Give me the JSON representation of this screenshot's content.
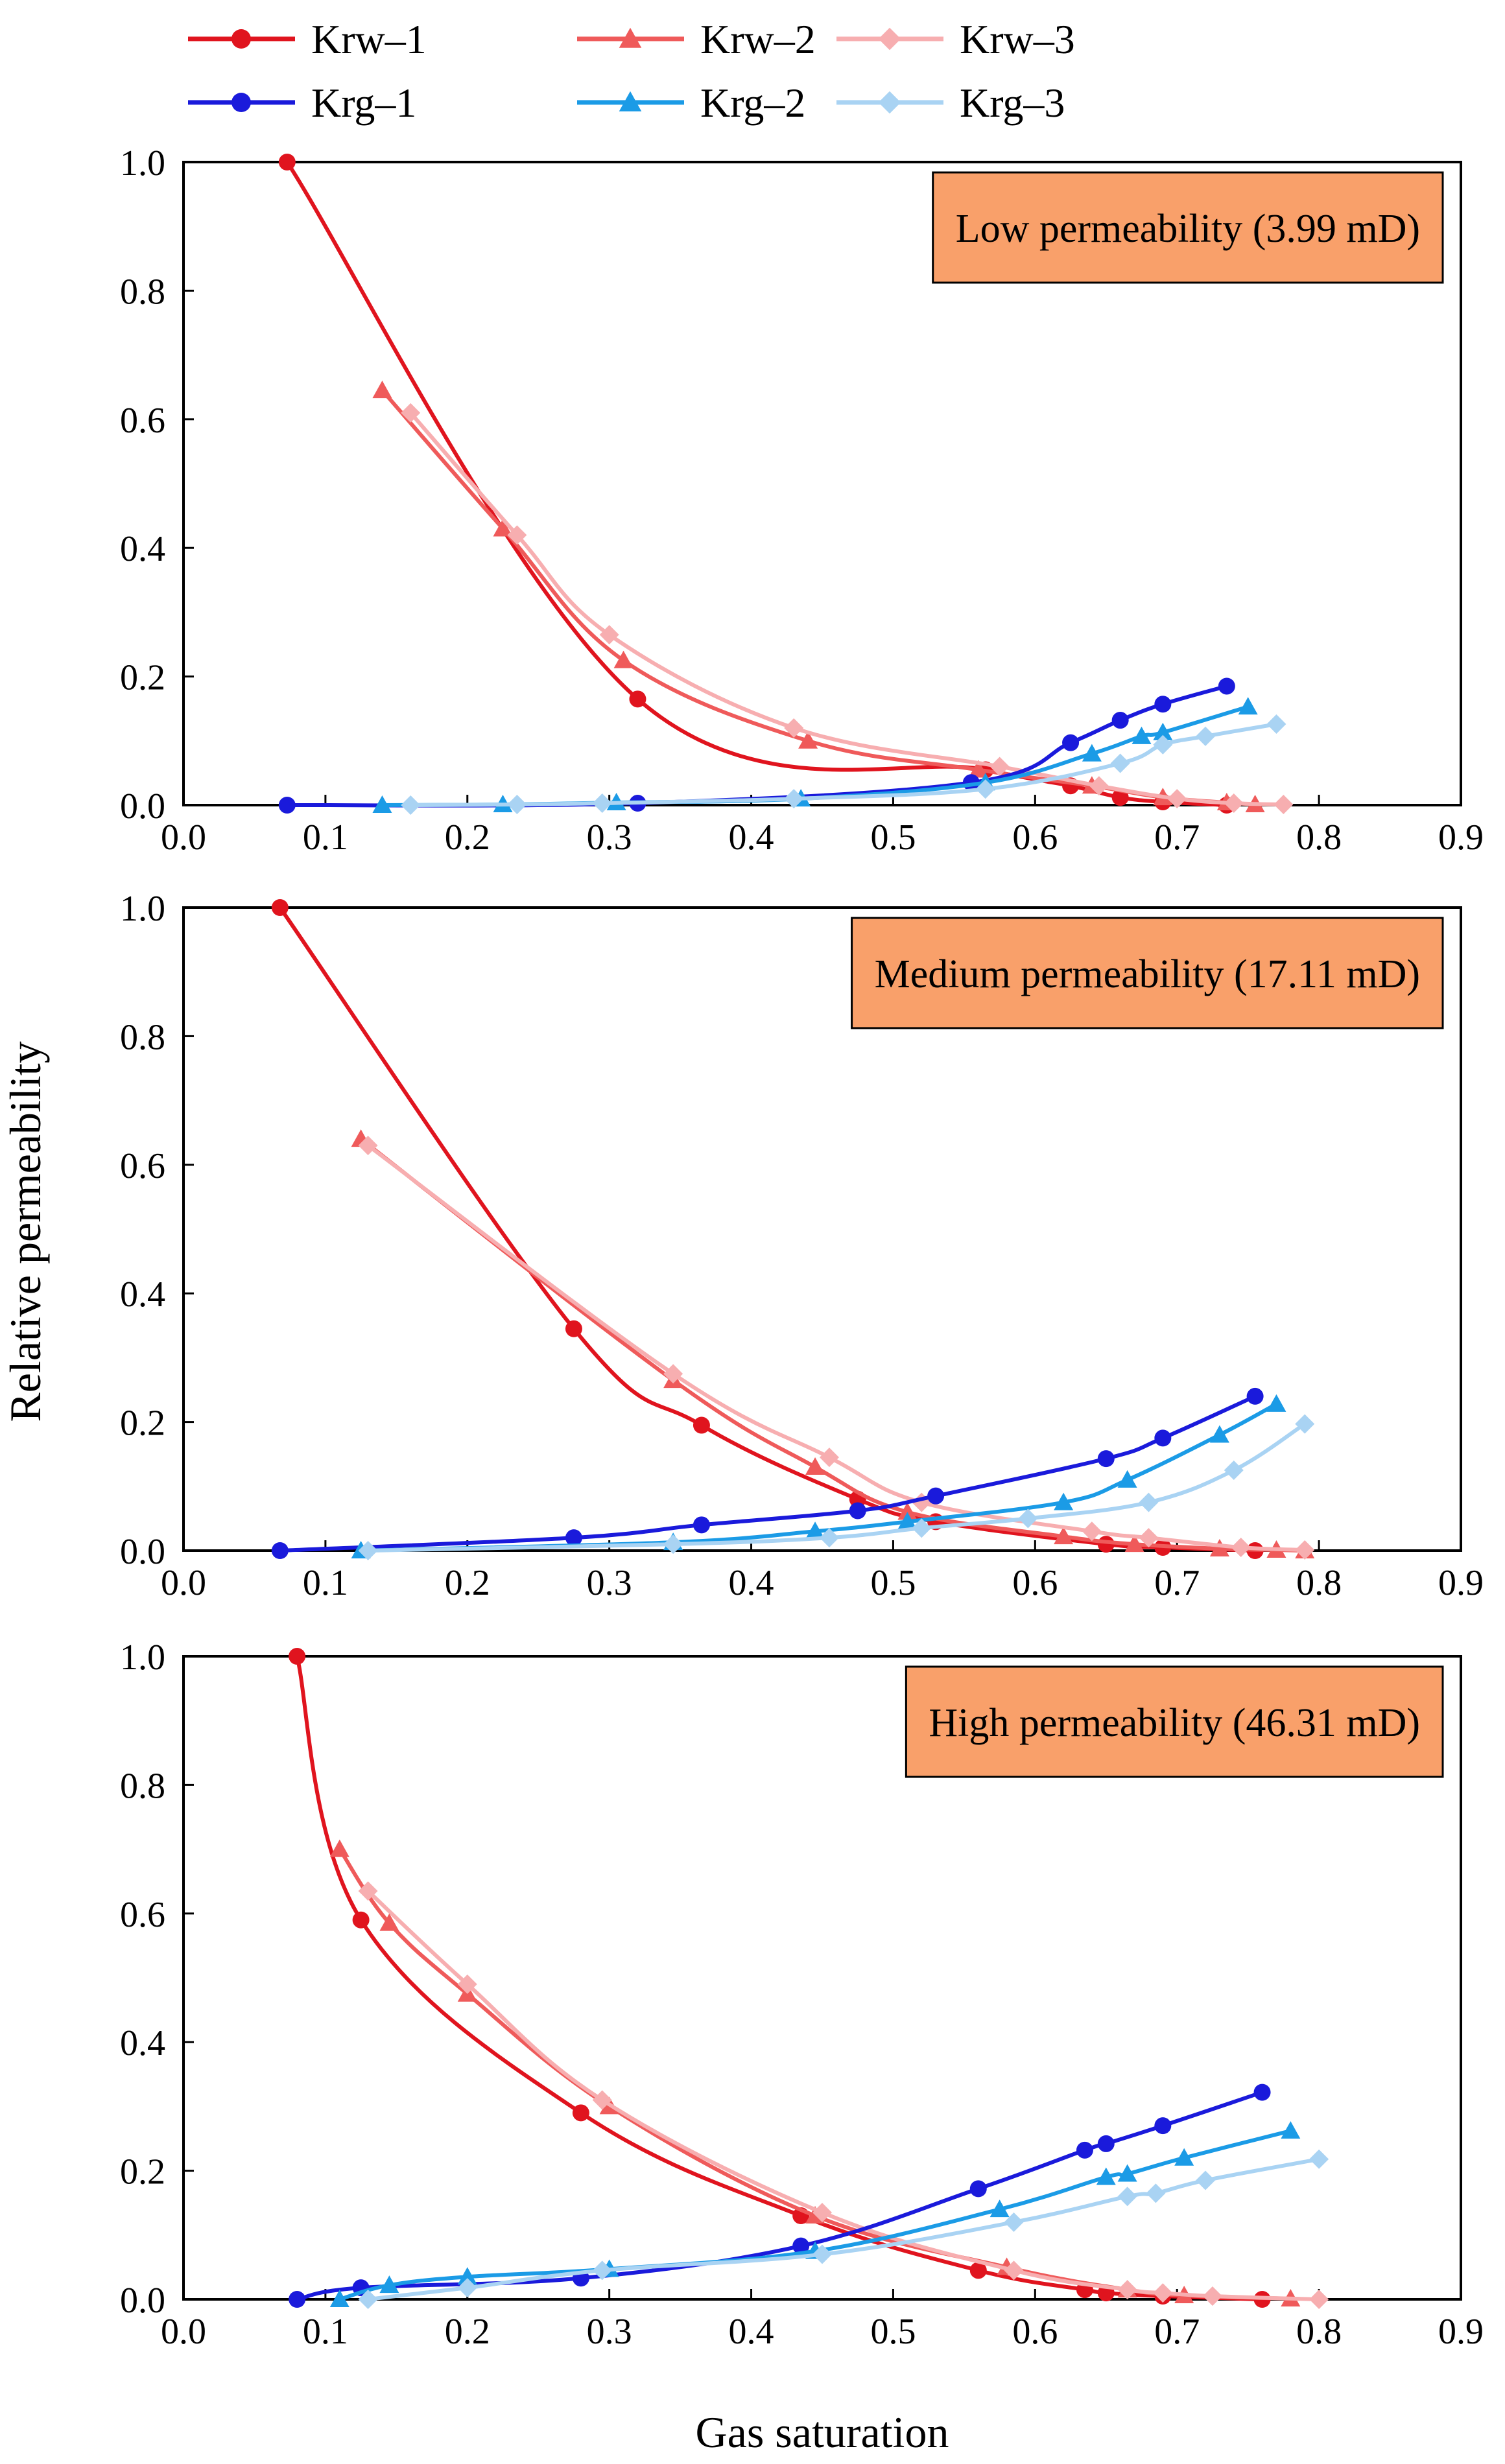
{
  "figure": {
    "ylabel": "Relative permeability",
    "xlabel": "Gas saturation"
  },
  "colors": {
    "Krw-1": "#e0141e",
    "Krw-2": "#ef5a5a",
    "Krw-3": "#f7aeb0",
    "Krg-1": "#1a1adb",
    "Krg-2": "#1b9be6",
    "Krg-3": "#a9d3f3",
    "badge_fill": "#f9a06a",
    "axis": "#000000"
  },
  "legend": [
    {
      "key": "Krw-1",
      "label": "Krw–1",
      "marker": "circle"
    },
    {
      "key": "Krw-2",
      "label": "Krw–2",
      "marker": "triangle"
    },
    {
      "key": "Krw-3",
      "label": "Krw–3",
      "marker": "diamond"
    },
    {
      "key": "Krg-1",
      "label": "Krg–1",
      "marker": "circle"
    },
    {
      "key": "Krg-2",
      "label": "Krg–2",
      "marker": "triangle"
    },
    {
      "key": "Krg-3",
      "label": "Krg–3",
      "marker": "diamond"
    }
  ],
  "chart_data": [
    {
      "type": "line",
      "title": "Low permeability (3.99 mD)",
      "xlabel": "",
      "ylabel": "",
      "xlim": [
        0.0,
        0.9
      ],
      "ylim": [
        0.0,
        1.0
      ],
      "x_ticks": [
        "0.0",
        "0.1",
        "0.2",
        "0.3",
        "0.4",
        "0.5",
        "0.6",
        "0.7",
        "0.8",
        "0.9"
      ],
      "y_ticks": [
        "0.0",
        "0.2",
        "0.4",
        "0.6",
        "0.8",
        "1.0"
      ],
      "series": [
        {
          "name": "Krw-1",
          "x": [
            0.073,
            0.32,
            0.565,
            0.625,
            0.66,
            0.69,
            0.735
          ],
          "y": [
            1.0,
            0.165,
            0.055,
            0.03,
            0.012,
            0.005,
            0.0
          ]
        },
        {
          "name": "Krw-2",
          "x": [
            0.14,
            0.225,
            0.31,
            0.44,
            0.56,
            0.64,
            0.69,
            0.735,
            0.755
          ],
          "y": [
            0.645,
            0.43,
            0.225,
            0.1,
            0.055,
            0.03,
            0.012,
            0.004,
            0.001
          ]
        },
        {
          "name": "Krw-3",
          "x": [
            0.16,
            0.235,
            0.3,
            0.43,
            0.575,
            0.645,
            0.7,
            0.74,
            0.775
          ],
          "y": [
            0.61,
            0.42,
            0.265,
            0.12,
            0.06,
            0.03,
            0.01,
            0.003,
            0.001
          ]
        },
        {
          "name": "Krg-1",
          "x": [
            0.073,
            0.32,
            0.555,
            0.625,
            0.66,
            0.69,
            0.735
          ],
          "y": [
            0.0,
            0.003,
            0.035,
            0.097,
            0.132,
            0.157,
            0.185
          ]
        },
        {
          "name": "Krg-2",
          "x": [
            0.14,
            0.225,
            0.305,
            0.435,
            0.565,
            0.64,
            0.675,
            0.69,
            0.75
          ],
          "y": [
            0.0,
            0.001,
            0.004,
            0.01,
            0.035,
            0.08,
            0.107,
            0.113,
            0.153
          ]
        },
        {
          "name": "Krg-3",
          "x": [
            0.16,
            0.235,
            0.295,
            0.43,
            0.565,
            0.66,
            0.69,
            0.72,
            0.77
          ],
          "y": [
            0.0,
            0.001,
            0.003,
            0.01,
            0.025,
            0.065,
            0.094,
            0.107,
            0.126
          ]
        }
      ]
    },
    {
      "type": "line",
      "title": "Medium permeability (17.11 mD)",
      "xlabel": "",
      "ylabel": "",
      "xlim": [
        0.0,
        0.9
      ],
      "ylim": [
        0.0,
        1.0
      ],
      "x_ticks": [
        "0.0",
        "0.1",
        "0.2",
        "0.3",
        "0.4",
        "0.5",
        "0.6",
        "0.7",
        "0.8",
        "0.9"
      ],
      "y_ticks": [
        "0.0",
        "0.2",
        "0.4",
        "0.6",
        "0.8",
        "1.0"
      ],
      "series": [
        {
          "name": "Krw-1",
          "x": [
            0.068,
            0.275,
            0.365,
            0.475,
            0.53,
            0.65,
            0.69,
            0.755
          ],
          "y": [
            1.0,
            0.345,
            0.195,
            0.08,
            0.045,
            0.01,
            0.005,
            0.0
          ]
        },
        {
          "name": "Krw-2",
          "x": [
            0.125,
            0.345,
            0.445,
            0.51,
            0.62,
            0.67,
            0.73,
            0.77,
            0.79
          ],
          "y": [
            0.64,
            0.265,
            0.13,
            0.06,
            0.022,
            0.01,
            0.003,
            0.001,
            0.0
          ]
        },
        {
          "name": "Krw-3",
          "x": [
            0.13,
            0.345,
            0.455,
            0.52,
            0.64,
            0.68,
            0.745,
            0.79
          ],
          "y": [
            0.63,
            0.275,
            0.145,
            0.075,
            0.03,
            0.02,
            0.005,
            0.001
          ]
        },
        {
          "name": "Krg-1",
          "x": [
            0.068,
            0.275,
            0.365,
            0.475,
            0.53,
            0.65,
            0.69,
            0.755
          ],
          "y": [
            0.0,
            0.02,
            0.04,
            0.062,
            0.085,
            0.143,
            0.175,
            0.24
          ]
        },
        {
          "name": "Krg-2",
          "x": [
            0.125,
            0.345,
            0.445,
            0.51,
            0.62,
            0.665,
            0.73,
            0.77
          ],
          "y": [
            0.0,
            0.013,
            0.03,
            0.045,
            0.075,
            0.11,
            0.18,
            0.228
          ]
        },
        {
          "name": "Krg-3",
          "x": [
            0.13,
            0.345,
            0.455,
            0.52,
            0.595,
            0.68,
            0.74,
            0.79
          ],
          "y": [
            0.0,
            0.01,
            0.02,
            0.035,
            0.05,
            0.075,
            0.125,
            0.197
          ]
        }
      ]
    },
    {
      "type": "line",
      "title": "High permeability (46.31 mD)",
      "xlabel": "Gas saturation",
      "ylabel": "",
      "xlim": [
        0.0,
        0.9
      ],
      "ylim": [
        0.0,
        1.0
      ],
      "x_ticks": [
        "0.0",
        "0.1",
        "0.2",
        "0.3",
        "0.4",
        "0.5",
        "0.6",
        "0.7",
        "0.8",
        "0.9"
      ],
      "y_ticks": [
        "0.0",
        "0.2",
        "0.4",
        "0.6",
        "0.8",
        "1.0"
      ],
      "series": [
        {
          "name": "Krw-1",
          "x": [
            0.08,
            0.125,
            0.28,
            0.435,
            0.56,
            0.635,
            0.65,
            0.69,
            0.76
          ],
          "y": [
            1.0,
            0.59,
            0.29,
            0.13,
            0.045,
            0.015,
            0.01,
            0.005,
            0.0
          ]
        },
        {
          "name": "Krw-2",
          "x": [
            0.11,
            0.145,
            0.2,
            0.3,
            0.445,
            0.58,
            0.665,
            0.705,
            0.78
          ],
          "y": [
            0.7,
            0.585,
            0.475,
            0.3,
            0.13,
            0.05,
            0.015,
            0.006,
            0.001
          ]
        },
        {
          "name": "Krw-3",
          "x": [
            0.13,
            0.2,
            0.295,
            0.45,
            0.585,
            0.665,
            0.69,
            0.725,
            0.8
          ],
          "y": [
            0.635,
            0.49,
            0.31,
            0.135,
            0.045,
            0.015,
            0.01,
            0.005,
            0.0
          ]
        },
        {
          "name": "Krg-1",
          "x": [
            0.08,
            0.125,
            0.28,
            0.435,
            0.56,
            0.635,
            0.65,
            0.69,
            0.76
          ],
          "y": [
            0.0,
            0.018,
            0.033,
            0.083,
            0.172,
            0.232,
            0.242,
            0.27,
            0.322
          ]
        },
        {
          "name": "Krg-2",
          "x": [
            0.11,
            0.145,
            0.2,
            0.3,
            0.445,
            0.575,
            0.65,
            0.665,
            0.705,
            0.78
          ],
          "y": [
            0.0,
            0.022,
            0.035,
            0.047,
            0.075,
            0.14,
            0.19,
            0.195,
            0.22,
            0.262
          ]
        },
        {
          "name": "Krg-3",
          "x": [
            0.13,
            0.2,
            0.295,
            0.45,
            0.585,
            0.665,
            0.685,
            0.72,
            0.8
          ],
          "y": [
            0.0,
            0.018,
            0.045,
            0.07,
            0.12,
            0.16,
            0.165,
            0.185,
            0.218
          ]
        }
      ]
    }
  ]
}
